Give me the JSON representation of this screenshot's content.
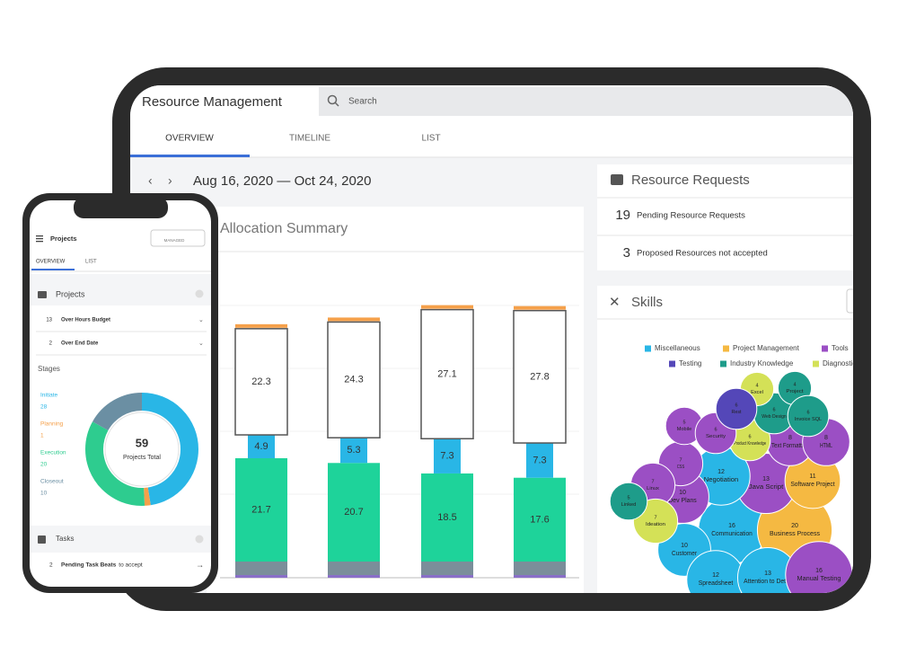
{
  "tablet": {
    "title": "Resource Management",
    "search_placeholder": "Search",
    "tabs": [
      "OVERVIEW",
      "TIMELINE",
      "LIST"
    ],
    "date_range": "Aug 16, 2020 — Oct 24, 2020",
    "allocation_summary": {
      "title": "Allocation Summary",
      "series": [
        {
          "color": "#1ed39a",
          "values": [
            21.7,
            20.7,
            18.5,
            17.6
          ]
        },
        {
          "color": "#29b6e6",
          "values": [
            4.9,
            5.3,
            7.3,
            7.3
          ]
        },
        {
          "color": "#ffffff",
          "values": [
            22.3,
            24.3,
            27.1,
            27.8
          ]
        }
      ]
    },
    "resource_requests": {
      "title": "Resource Requests",
      "items": [
        {
          "count": 19,
          "label": "Pending Resource Requests"
        },
        {
          "count": 3,
          "label": "Proposed Resources not accepted"
        }
      ]
    },
    "skills": {
      "title": "Skills",
      "legend": [
        {
          "name": "Miscellaneous",
          "color": "#29b6e6"
        },
        {
          "name": "Project Management",
          "color": "#f5b942"
        },
        {
          "name": "Tools",
          "color": "#9b4fc4"
        },
        {
          "name": "Testing",
          "color": "#5447b8"
        },
        {
          "name": "Industry Knowledge",
          "color": "#1e9c8a"
        },
        {
          "name": "Diagnostics",
          "color": "#d4e157"
        }
      ],
      "bubbles": [
        {
          "value": 16,
          "label": "Communication",
          "color": "#29b6e6"
        },
        {
          "value": 20,
          "label": "Business Process",
          "color": "#f5b942"
        },
        {
          "value": 13,
          "label": "Java Script",
          "color": "#9b4fc4"
        },
        {
          "value": 12,
          "label": "Negotiation",
          "color": "#29b6e6"
        },
        {
          "value": 10,
          "label": "Dev Plans",
          "color": "#9b4fc4"
        },
        {
          "value": 10,
          "label": "Customer",
          "color": "#29b6e6"
        },
        {
          "value": 12,
          "label": "Spreadsheet",
          "color": "#29b6e6"
        },
        {
          "value": 13,
          "label": "Attention to Detail",
          "color": "#29b6e6"
        },
        {
          "value": 16,
          "label": "Manual Testing",
          "color": "#9b4fc4"
        },
        {
          "value": 11,
          "label": "Software Project",
          "color": "#f5b942"
        },
        {
          "value": 7,
          "label": "CSS",
          "color": "#9b4fc4"
        },
        {
          "value": 7,
          "label": "Linux",
          "color": "#9b4fc4"
        },
        {
          "value": 7,
          "label": "Ideation",
          "color": "#d4e157"
        },
        {
          "value": 8,
          "label": "Text Formatting",
          "color": "#9b4fc4"
        },
        {
          "value": 6,
          "label": "Product Knowledge",
          "color": "#d4e157"
        },
        {
          "value": 8,
          "label": "HTML",
          "color": "#9b4fc4"
        },
        {
          "value": 6,
          "label": "Web Design",
          "color": "#1e9c8a"
        },
        {
          "value": 5,
          "label": "Mobile",
          "color": "#9b4fc4"
        },
        {
          "value": 6,
          "label": "Security",
          "color": "#9b4fc4"
        },
        {
          "value": 4,
          "label": "Excel",
          "color": "#d4e157"
        },
        {
          "value": 4,
          "label": "Project",
          "color": "#1e9c8a"
        },
        {
          "value": 6,
          "label": "Rest",
          "color": "#5447b8"
        },
        {
          "value": 6,
          "label": "Invoice SQL",
          "color": "#1e9c8a"
        },
        {
          "value": 5,
          "label": "Linked",
          "color": "#1e9c8a"
        }
      ]
    }
  },
  "phone": {
    "title": "Projects",
    "filter": "MANAGED",
    "tabs": [
      "OVERVIEW",
      "LIST"
    ],
    "projects_section": "Projects",
    "project_rows": [
      {
        "count": 13,
        "label": "Over Hours Budget"
      },
      {
        "count": 2,
        "label": "Over End Date"
      }
    ],
    "stages_title": "Stages",
    "stages": [
      {
        "name": "Initiate",
        "value": 28,
        "color": "#29b6e6"
      },
      {
        "name": "Planning",
        "value": 1,
        "color": "#f5a04a"
      },
      {
        "name": "Execution",
        "value": 20,
        "color": "#2ecc8f"
      },
      {
        "name": "Closeout",
        "value": 10,
        "color": "#6b8fa3"
      }
    ],
    "total": 59,
    "total_label": "Projects Total",
    "tasks_section": "Tasks",
    "task_row": {
      "count": 2,
      "label": "Pending Task Beats",
      "suffix": "to accept"
    }
  }
}
